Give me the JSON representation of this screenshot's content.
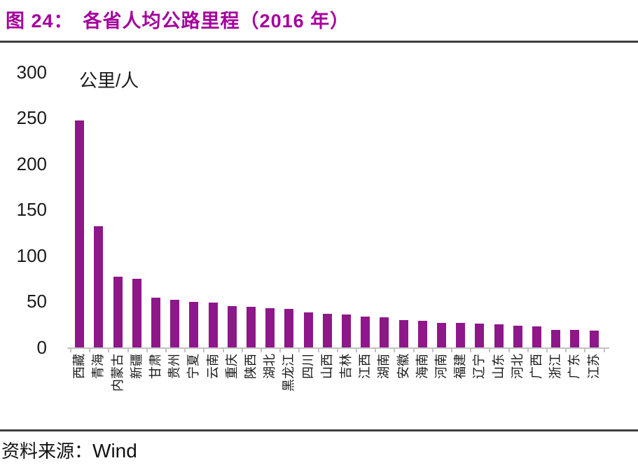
{
  "figure": {
    "number_label": "图 24：",
    "title": "各省人均公路里程（2016 年）",
    "source_label": "资料来源：",
    "source_value": "Wind"
  },
  "colors": {
    "title": "#A4009C",
    "bar": "#8E178A",
    "axis": "#C2C2C2",
    "rule": "#3F3F3F",
    "text": "#1A1A1A"
  },
  "chart_data": {
    "type": "bar",
    "title": "各省人均公路里程（2016 年）",
    "unit_label": "公里/人",
    "xlabel": "",
    "ylabel": "公里/人",
    "categories": [
      "西藏",
      "青海",
      "内蒙古",
      "新疆",
      "甘肃",
      "贵州",
      "宁夏",
      "云南",
      "重庆",
      "陕西",
      "湖北",
      "黑龙江",
      "四川",
      "山西",
      "吉林",
      "江西",
      "湖南",
      "安徽",
      "海南",
      "河南",
      "福建",
      "辽宁",
      "山东",
      "河北",
      "广西",
      "浙江",
      "广东",
      "江苏"
    ],
    "values": [
      248,
      132,
      77,
      75,
      54,
      52,
      50,
      49,
      45,
      44,
      43,
      42,
      38,
      37,
      36,
      34,
      33,
      30,
      29,
      27,
      27,
      26,
      25,
      24,
      23,
      19,
      19,
      18
    ],
    "ylim": [
      0,
      300
    ],
    "yticks": [
      0,
      50,
      100,
      150,
      200,
      250,
      300
    ],
    "grid": false,
    "legend": "none",
    "x_tick_label_rotation": -90
  }
}
